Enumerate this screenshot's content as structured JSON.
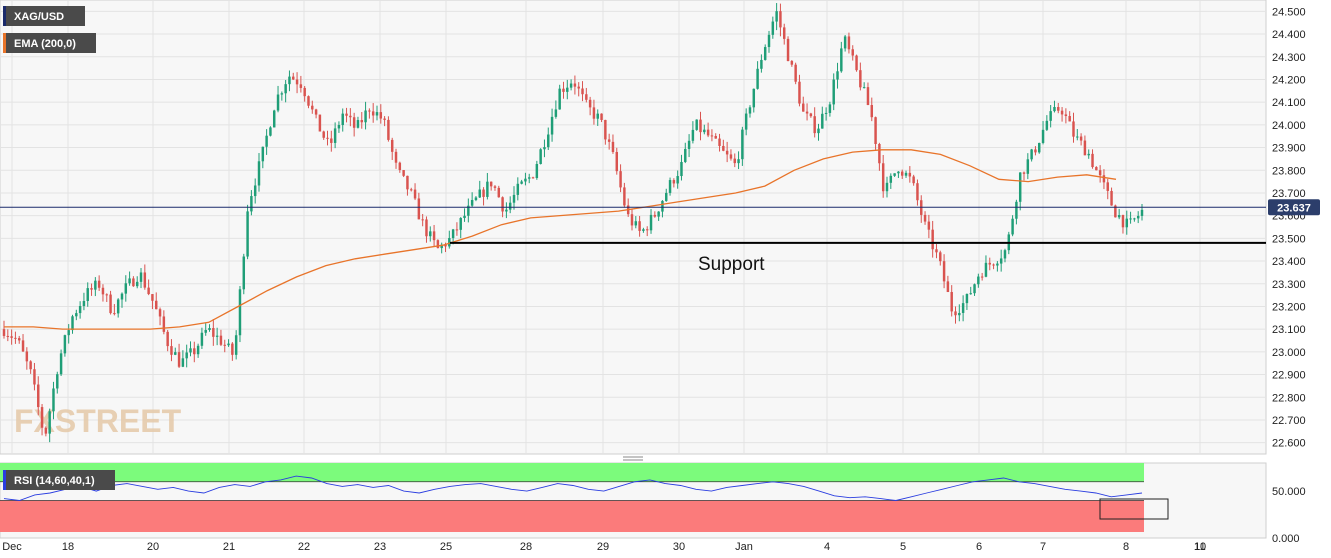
{
  "chart_data": {
    "type": "candlestick",
    "symbol": "XAG/USD",
    "indicator_label": "EMA (200,0)",
    "last_price": "23.637",
    "price_axis": {
      "ylim": [
        22.55,
        24.55
      ],
      "ticks": [
        "22.600",
        "22.700",
        "22.800",
        "22.900",
        "23.000",
        "23.100",
        "23.200",
        "23.300",
        "23.400",
        "23.500",
        "23.600",
        "23.700",
        "23.800",
        "23.900",
        "24.000",
        "24.100",
        "24.200",
        "24.300",
        "24.400",
        "24.500"
      ]
    },
    "x_axis": {
      "labels": [
        "Dec",
        "18",
        "20",
        "21",
        "22",
        "23",
        "25",
        "28",
        "29",
        "30",
        "Jan",
        "4",
        "5",
        "6",
        "7",
        "8",
        "10",
        "11"
      ]
    },
    "annotation": {
      "text": "Support",
      "level": 23.48
    },
    "ema_path": [
      [
        0,
        23.11
      ],
      [
        2,
        23.11
      ],
      [
        4,
        23.1
      ],
      [
        6,
        23.1
      ],
      [
        8,
        23.1
      ],
      [
        10,
        23.1
      ],
      [
        12,
        23.11
      ],
      [
        14,
        23.13
      ],
      [
        16,
        23.2
      ],
      [
        18,
        23.27
      ],
      [
        20,
        23.33
      ],
      [
        22,
        23.38
      ],
      [
        24,
        23.41
      ],
      [
        26,
        23.43
      ],
      [
        28,
        23.45
      ],
      [
        30,
        23.47
      ],
      [
        32,
        23.51
      ],
      [
        34,
        23.56
      ],
      [
        36,
        23.59
      ],
      [
        38,
        23.6
      ],
      [
        40,
        23.61
      ],
      [
        42,
        23.62
      ],
      [
        44,
        23.64
      ],
      [
        46,
        23.66
      ],
      [
        48,
        23.68
      ],
      [
        50,
        23.7
      ],
      [
        52,
        23.73
      ],
      [
        54,
        23.8
      ],
      [
        56,
        23.85
      ],
      [
        58,
        23.88
      ],
      [
        60,
        23.89
      ],
      [
        62,
        23.89
      ],
      [
        64,
        23.87
      ],
      [
        66,
        23.82
      ],
      [
        68,
        23.76
      ],
      [
        70,
        23.75
      ],
      [
        72,
        23.77
      ],
      [
        74,
        23.78
      ],
      [
        76,
        23.76
      ]
    ],
    "price_path": [
      [
        0,
        23.1
      ],
      [
        1,
        23.05
      ],
      [
        2,
        22.9
      ],
      [
        3,
        22.62
      ],
      [
        4,
        22.95
      ],
      [
        5,
        23.15
      ],
      [
        6,
        23.25
      ],
      [
        7,
        23.3
      ],
      [
        8,
        23.18
      ],
      [
        9,
        23.28
      ],
      [
        10,
        23.35
      ],
      [
        11,
        23.22
      ],
      [
        12,
        23.05
      ],
      [
        13,
        22.95
      ],
      [
        14,
        23.0
      ],
      [
        15,
        23.1
      ],
      [
        16,
        23.05
      ],
      [
        17,
        22.98
      ],
      [
        18,
        23.65
      ],
      [
        19,
        23.85
      ],
      [
        20,
        24.1
      ],
      [
        21,
        24.22
      ],
      [
        22,
        24.18
      ],
      [
        23,
        24.02
      ],
      [
        24,
        23.9
      ],
      [
        25,
        24.05
      ],
      [
        26,
        23.98
      ],
      [
        27,
        24.08
      ],
      [
        28,
        24.02
      ],
      [
        29,
        23.8
      ],
      [
        30,
        23.7
      ],
      [
        31,
        23.55
      ],
      [
        32,
        23.45
      ],
      [
        33,
        23.5
      ],
      [
        34,
        23.6
      ],
      [
        35,
        23.68
      ],
      [
        36,
        23.75
      ],
      [
        37,
        23.62
      ],
      [
        38,
        23.72
      ],
      [
        39,
        23.78
      ],
      [
        40,
        23.95
      ],
      [
        41,
        24.15
      ],
      [
        42,
        24.2
      ],
      [
        43,
        24.08
      ],
      [
        44,
        24.02
      ],
      [
        45,
        23.85
      ],
      [
        46,
        23.6
      ],
      [
        47,
        23.52
      ],
      [
        48,
        23.6
      ],
      [
        49,
        23.72
      ],
      [
        50,
        23.82
      ],
      [
        51,
        24.0
      ],
      [
        52,
        23.95
      ],
      [
        53,
        23.88
      ],
      [
        54,
        23.82
      ],
      [
        55,
        24.08
      ],
      [
        56,
        24.32
      ],
      [
        57,
        24.5
      ],
      [
        58,
        24.28
      ],
      [
        59,
        24.05
      ],
      [
        60,
        23.98
      ],
      [
        61,
        24.12
      ],
      [
        62,
        24.38
      ],
      [
        63,
        24.22
      ],
      [
        64,
        24.05
      ],
      [
        65,
        23.7
      ],
      [
        66,
        23.82
      ],
      [
        67,
        23.75
      ],
      [
        68,
        23.55
      ],
      [
        69,
        23.4
      ],
      [
        70,
        23.18
      ],
      [
        71,
        23.22
      ],
      [
        72,
        23.35
      ],
      [
        73,
        23.4
      ],
      [
        74,
        23.45
      ],
      [
        75,
        23.78
      ],
      [
        76,
        23.88
      ],
      [
        77,
        24.02
      ],
      [
        78,
        24.08
      ],
      [
        79,
        23.95
      ],
      [
        80,
        23.88
      ],
      [
        81,
        23.75
      ],
      [
        82,
        23.62
      ],
      [
        83,
        23.55
      ],
      [
        84,
        23.62
      ]
    ],
    "rsi": {
      "label": "RSI (14,60,40,1)",
      "ylim": [
        0,
        80
      ],
      "ticks": [
        "0.000",
        "50.000"
      ],
      "upper_band": 60,
      "lower_band": 40,
      "values": [
        42,
        40,
        46,
        48,
        52,
        55,
        50,
        56,
        58,
        55,
        52,
        54,
        50,
        48,
        54,
        57,
        55,
        60,
        62,
        66,
        64,
        58,
        55,
        57,
        54,
        56,
        50,
        48,
        52,
        55,
        57,
        58,
        55,
        52,
        50,
        54,
        58,
        56,
        52,
        50,
        55,
        60,
        62,
        58,
        56,
        52,
        50,
        54,
        56,
        58,
        60,
        58,
        55,
        50,
        45,
        43,
        44,
        42,
        40,
        44,
        48,
        52,
        56,
        60,
        62,
        64,
        60,
        58,
        55,
        52,
        50,
        48,
        44,
        46,
        48
      ]
    }
  },
  "colors": {
    "bull": "#1f9e77",
    "bear": "#d9534f",
    "ema": "#e8742a",
    "price_line": "#1a2a6b",
    "tag_bg": "#4a4a4a",
    "price_tag_bg": "#2c3e6b",
    "rsi_green": "#7cfb7c",
    "rsi_red": "#fb7b7b",
    "rsi_line": "#2a3de0"
  },
  "logo": "FXSTREET"
}
